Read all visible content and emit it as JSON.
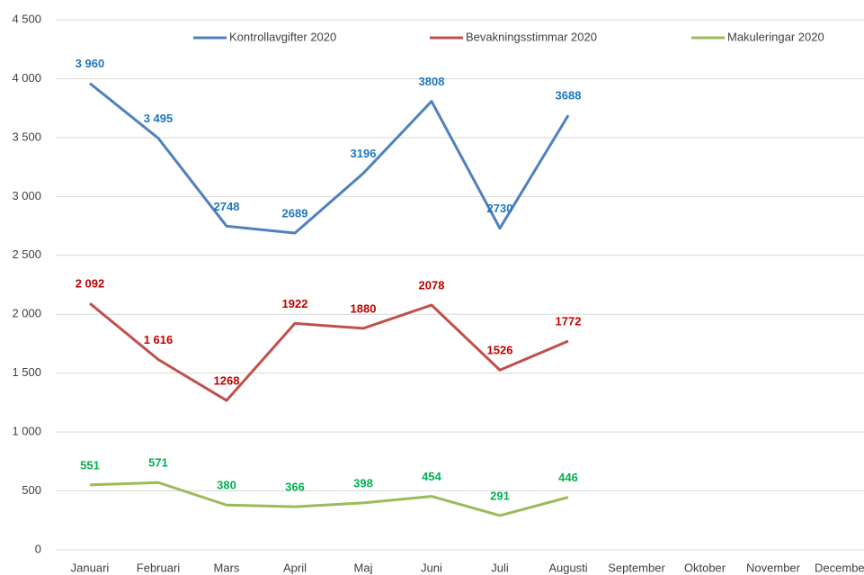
{
  "chart_data": {
    "type": "line",
    "categories": [
      "Januari",
      "Februari",
      "Mars",
      "April",
      "Maj",
      "Juni",
      "Juli",
      "Augusti",
      "September",
      "Oktober",
      "November",
      "December"
    ],
    "series": [
      {
        "name": "Kontrollavgifter 2020",
        "color": "#4f81bd",
        "label_color": "#1f77c0",
        "values": [
          3960,
          3495,
          2748,
          2689,
          3196,
          3808,
          2730,
          3688,
          null,
          null,
          null,
          null
        ],
        "value_labels": [
          "3 960",
          "3 495",
          "2748",
          "2689",
          "3196",
          "3808",
          "2730",
          "3688",
          null,
          null,
          null,
          null
        ]
      },
      {
        "name": "Bevakningsstimmar 2020",
        "color": "#c0504d",
        "label_color": "#c00000",
        "values": [
          2092,
          1616,
          1268,
          1922,
          1880,
          2078,
          1526,
          1772,
          null,
          null,
          null,
          null
        ],
        "value_labels": [
          "2 092",
          "1 616",
          "1268",
          "1922",
          "1880",
          "2078",
          "1526",
          "1772",
          null,
          null,
          null,
          null
        ]
      },
      {
        "name": "Makuleringar 2020",
        "color": "#9bbb59",
        "label_color": "#00b050",
        "values": [
          551,
          571,
          380,
          366,
          398,
          454,
          291,
          446,
          null,
          null,
          null,
          null
        ]
      }
    ],
    "ylim": [
      0,
      4500
    ],
    "yticks": [
      0,
      500,
      {
        "value": 1000,
        "label": "1 000"
      },
      {
        "value": 1500,
        "label": "1 500"
      },
      {
        "value": 2000,
        "label": "2 000"
      },
      {
        "value": 2500,
        "label": "2 500"
      },
      {
        "value": 3000,
        "label": "3 000"
      },
      {
        "value": 3500,
        "label": "3 500"
      },
      {
        "value": 4000,
        "label": "4 000"
      },
      {
        "value": 4500,
        "label": "4 500"
      }
    ],
    "grid": true,
    "legend": "top"
  }
}
